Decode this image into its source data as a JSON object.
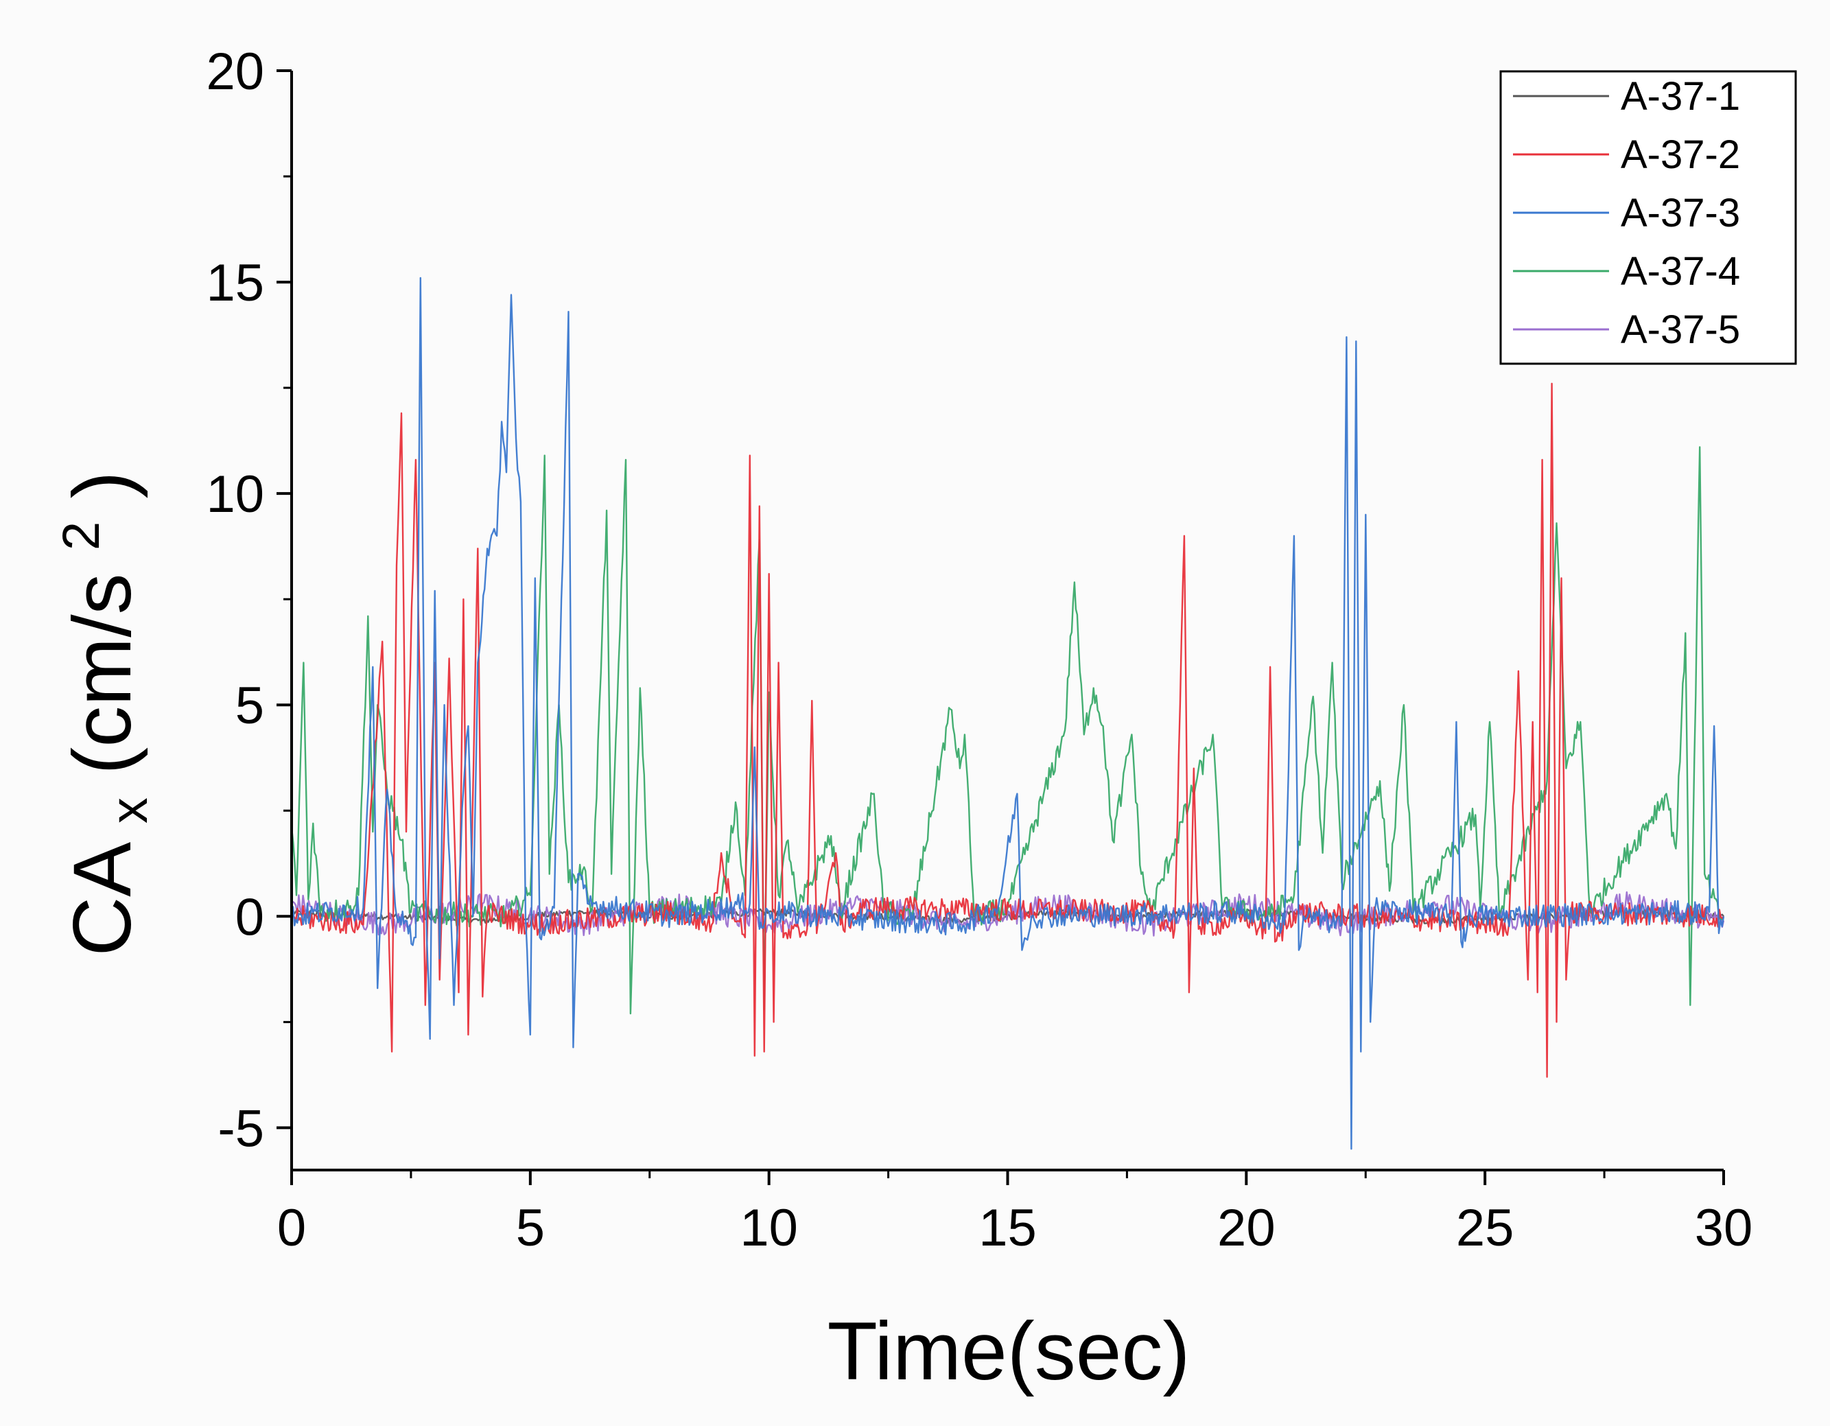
{
  "chart_data": {
    "type": "line",
    "title": "",
    "xlabel": "Time(sec)",
    "ylabel": {
      "main": "CA",
      "subscript": "x",
      "unit_open": "(cm/s",
      "superscript": "2",
      "unit_close": ")"
    },
    "xlim": [
      0,
      30
    ],
    "ylim": [
      -6,
      20
    ],
    "xticks": [
      0,
      5,
      10,
      15,
      20,
      25,
      30
    ],
    "yticks": [
      -5,
      0,
      5,
      10,
      15,
      20
    ],
    "xtick_labels": [
      "0",
      "5",
      "10",
      "15",
      "20",
      "25",
      "30"
    ],
    "ytick_labels": [
      "-5",
      "0",
      "5",
      "10",
      "15",
      "20"
    ],
    "grid": false,
    "legend_position": "top-right",
    "series": [
      {
        "name": "A-37-1",
        "color": "#555555",
        "points": [
          [
            0,
            0.1
          ],
          [
            2,
            0.0
          ],
          [
            4,
            -0.1
          ],
          [
            6,
            0.1
          ],
          [
            8,
            0.0
          ],
          [
            10,
            0.1
          ],
          [
            12,
            0.0
          ],
          [
            14,
            -0.1
          ],
          [
            16,
            0.1
          ],
          [
            18,
            0.0
          ],
          [
            20,
            0.1
          ],
          [
            22,
            0.0
          ],
          [
            24,
            -0.1
          ],
          [
            26,
            0.0
          ],
          [
            28,
            0.1
          ],
          [
            30,
            0.0
          ]
        ]
      },
      {
        "name": "A-37-2",
        "color": "#e8303a",
        "points": [
          [
            0,
            0.0
          ],
          [
            1.5,
            -0.2
          ],
          [
            1.9,
            6.5
          ],
          [
            2.1,
            -3.2
          ],
          [
            2.2,
            8.3
          ],
          [
            2.3,
            11.9
          ],
          [
            2.4,
            2.0
          ],
          [
            2.6,
            10.8
          ],
          [
            2.8,
            -2.1
          ],
          [
            3.0,
            6.0
          ],
          [
            3.1,
            -1.5
          ],
          [
            3.3,
            6.1
          ],
          [
            3.5,
            -1.8
          ],
          [
            3.6,
            7.5
          ],
          [
            3.7,
            -2.8
          ],
          [
            3.9,
            8.7
          ],
          [
            4.0,
            -1.9
          ],
          [
            4.1,
            0.1
          ],
          [
            5.0,
            -0.2
          ],
          [
            8.0,
            0.1
          ],
          [
            8.8,
            -0.2
          ],
          [
            9.0,
            1.5
          ],
          [
            9.2,
            0.3
          ],
          [
            9.5,
            -0.5
          ],
          [
            9.6,
            10.9
          ],
          [
            9.7,
            -3.3
          ],
          [
            9.8,
            9.7
          ],
          [
            9.9,
            -3.2
          ],
          [
            10.0,
            8.1
          ],
          [
            10.1,
            -2.5
          ],
          [
            10.2,
            6.0
          ],
          [
            10.3,
            -0.5
          ],
          [
            10.8,
            -0.3
          ],
          [
            10.9,
            5.1
          ],
          [
            11.0,
            -0.4
          ],
          [
            11.4,
            1.5
          ],
          [
            11.5,
            -0.2
          ],
          [
            12.0,
            0.2
          ],
          [
            18.0,
            0.1
          ],
          [
            18.5,
            -0.3
          ],
          [
            18.7,
            9.0
          ],
          [
            18.8,
            -1.8
          ],
          [
            18.9,
            3.5
          ],
          [
            19.0,
            -0.3
          ],
          [
            20.0,
            0.0
          ],
          [
            20.4,
            -0.4
          ],
          [
            20.5,
            5.9
          ],
          [
            20.6,
            -0.6
          ],
          [
            21.0,
            0.1
          ],
          [
            25.5,
            -0.2
          ],
          [
            25.7,
            5.8
          ],
          [
            25.9,
            -1.5
          ],
          [
            26.0,
            4.6
          ],
          [
            26.1,
            -1.8
          ],
          [
            26.2,
            10.8
          ],
          [
            26.3,
            -3.8
          ],
          [
            26.4,
            12.6
          ],
          [
            26.5,
            -2.5
          ],
          [
            26.6,
            8.0
          ],
          [
            26.7,
            -1.5
          ],
          [
            26.8,
            0.1
          ],
          [
            30,
            0.0
          ]
        ]
      },
      {
        "name": "A-37-3",
        "color": "#3a78cf",
        "points": [
          [
            0,
            0.0
          ],
          [
            1.5,
            0.2
          ],
          [
            1.7,
            5.9
          ],
          [
            1.8,
            -1.7
          ],
          [
            2.0,
            3.0
          ],
          [
            2.2,
            0.0
          ],
          [
            2.6,
            -0.5
          ],
          [
            2.7,
            15.1
          ],
          [
            2.8,
            1.0
          ],
          [
            2.9,
            -2.9
          ],
          [
            3.0,
            7.7
          ],
          [
            3.1,
            -1.0
          ],
          [
            3.2,
            5.0
          ],
          [
            3.4,
            -2.1
          ],
          [
            3.6,
            3.0
          ],
          [
            3.7,
            4.5
          ],
          [
            3.8,
            0.0
          ],
          [
            3.9,
            6.0
          ],
          [
            4.1,
            8.7
          ],
          [
            4.3,
            9.0
          ],
          [
            4.4,
            11.7
          ],
          [
            4.5,
            10.5
          ],
          [
            4.6,
            14.7
          ],
          [
            4.7,
            11.3
          ],
          [
            4.8,
            9.8
          ],
          [
            4.9,
            0.0
          ],
          [
            5.0,
            -2.8
          ],
          [
            5.1,
            8.0
          ],
          [
            5.2,
            -0.5
          ],
          [
            5.5,
            0.2
          ],
          [
            5.8,
            14.3
          ],
          [
            5.9,
            -3.1
          ],
          [
            6.0,
            1.0
          ],
          [
            6.2,
            0.3
          ],
          [
            8.0,
            0.0
          ],
          [
            9.6,
            0.3
          ],
          [
            9.7,
            4.0
          ],
          [
            9.8,
            -0.3
          ],
          [
            10.0,
            0.1
          ],
          [
            14.0,
            -0.2
          ],
          [
            14.8,
            0.2
          ],
          [
            15.2,
            2.9
          ],
          [
            15.3,
            -0.8
          ],
          [
            15.5,
            0.0
          ],
          [
            20.0,
            0.1
          ],
          [
            20.8,
            -0.2
          ],
          [
            21.0,
            9.0
          ],
          [
            21.1,
            -0.8
          ],
          [
            21.2,
            0.0
          ],
          [
            22.0,
            -0.2
          ],
          [
            22.1,
            13.7
          ],
          [
            22.2,
            -5.5
          ],
          [
            22.3,
            13.6
          ],
          [
            22.4,
            -3.2
          ],
          [
            22.5,
            9.5
          ],
          [
            22.6,
            -2.5
          ],
          [
            22.7,
            0.2
          ],
          [
            24.3,
            0.0
          ],
          [
            24.4,
            4.6
          ],
          [
            24.5,
            -0.6
          ],
          [
            24.7,
            0.0
          ],
          [
            29.7,
            0.1
          ],
          [
            29.8,
            4.5
          ],
          [
            29.9,
            -0.4
          ],
          [
            30,
            0.0
          ]
        ]
      },
      {
        "name": "A-37-4",
        "color": "#3aaa6a",
        "points": [
          [
            0,
            2.1
          ],
          [
            0.1,
            0.5
          ],
          [
            0.25,
            6.0
          ],
          [
            0.35,
            0.4
          ],
          [
            0.45,
            2.2
          ],
          [
            0.6,
            0.1
          ],
          [
            1.2,
            0.2
          ],
          [
            1.4,
            0.5
          ],
          [
            1.6,
            7.1
          ],
          [
            1.7,
            2.0
          ],
          [
            1.8,
            5.0
          ],
          [
            2.0,
            3.0
          ],
          [
            2.3,
            1.8
          ],
          [
            2.5,
            0.1
          ],
          [
            4.5,
            0.0
          ],
          [
            5.0,
            0.5
          ],
          [
            5.3,
            10.9
          ],
          [
            5.4,
            1.0
          ],
          [
            5.6,
            5.0
          ],
          [
            5.8,
            0.8
          ],
          [
            6.1,
            1.1
          ],
          [
            6.3,
            0.2
          ],
          [
            6.6,
            9.6
          ],
          [
            6.7,
            1.0
          ],
          [
            7.0,
            10.8
          ],
          [
            7.1,
            -2.3
          ],
          [
            7.3,
            5.4
          ],
          [
            7.5,
            0.1
          ],
          [
            9.0,
            0.3
          ],
          [
            9.3,
            2.7
          ],
          [
            9.5,
            0.5
          ],
          [
            9.8,
            8.9
          ],
          [
            9.9,
            -2.2
          ],
          [
            10.0,
            5.3
          ],
          [
            10.2,
            0.5
          ],
          [
            10.4,
            1.8
          ],
          [
            10.6,
            0.1
          ],
          [
            11.3,
            1.9
          ],
          [
            11.5,
            0.1
          ],
          [
            12.2,
            2.9
          ],
          [
            12.4,
            0.1
          ],
          [
            13.0,
            0.0
          ],
          [
            13.8,
            4.9
          ],
          [
            14.0,
            3.5
          ],
          [
            14.1,
            4.3
          ],
          [
            14.3,
            0.0
          ],
          [
            15.0,
            0.2
          ],
          [
            16.2,
            4.4
          ],
          [
            16.4,
            7.9
          ],
          [
            16.6,
            4.3
          ],
          [
            16.8,
            5.4
          ],
          [
            17.0,
            4.5
          ],
          [
            17.2,
            1.8
          ],
          [
            17.4,
            3.0
          ],
          [
            17.6,
            4.3
          ],
          [
            17.8,
            1.0
          ],
          [
            18.0,
            0.1
          ],
          [
            19.3,
            4.3
          ],
          [
            19.5,
            0.2
          ],
          [
            20.5,
            0.0
          ],
          [
            21.0,
            0.5
          ],
          [
            21.4,
            5.2
          ],
          [
            21.6,
            1.5
          ],
          [
            21.8,
            6.0
          ],
          [
            22.0,
            0.8
          ],
          [
            22.8,
            3.2
          ],
          [
            23.0,
            0.6
          ],
          [
            23.3,
            5.0
          ],
          [
            23.5,
            0.1
          ],
          [
            24.8,
            2.4
          ],
          [
            24.9,
            0.2
          ],
          [
            25.1,
            4.6
          ],
          [
            25.3,
            0.0
          ],
          [
            26.3,
            3.2
          ],
          [
            26.5,
            9.3
          ],
          [
            26.7,
            3.5
          ],
          [
            27.0,
            4.6
          ],
          [
            27.2,
            0.1
          ],
          [
            28.8,
            2.9
          ],
          [
            29.0,
            1.6
          ],
          [
            29.2,
            6.7
          ],
          [
            29.3,
            -2.1
          ],
          [
            29.5,
            11.1
          ],
          [
            29.6,
            1.0
          ],
          [
            29.9,
            0.0
          ],
          [
            30,
            0.0
          ]
        ]
      },
      {
        "name": "A-37-5",
        "color": "#9b6fd0",
        "points": [
          [
            0,
            0.3
          ],
          [
            2,
            -0.2
          ],
          [
            4,
            0.3
          ],
          [
            6,
            -0.2
          ],
          [
            8,
            0.3
          ],
          [
            10,
            -0.2
          ],
          [
            12,
            0.3
          ],
          [
            14,
            -0.2
          ],
          [
            16,
            0.3
          ],
          [
            18,
            -0.2
          ],
          [
            20,
            0.3
          ],
          [
            22,
            -0.2
          ],
          [
            24,
            0.3
          ],
          [
            26,
            -0.2
          ],
          [
            28,
            0.3
          ],
          [
            30,
            -0.1
          ]
        ]
      }
    ]
  }
}
